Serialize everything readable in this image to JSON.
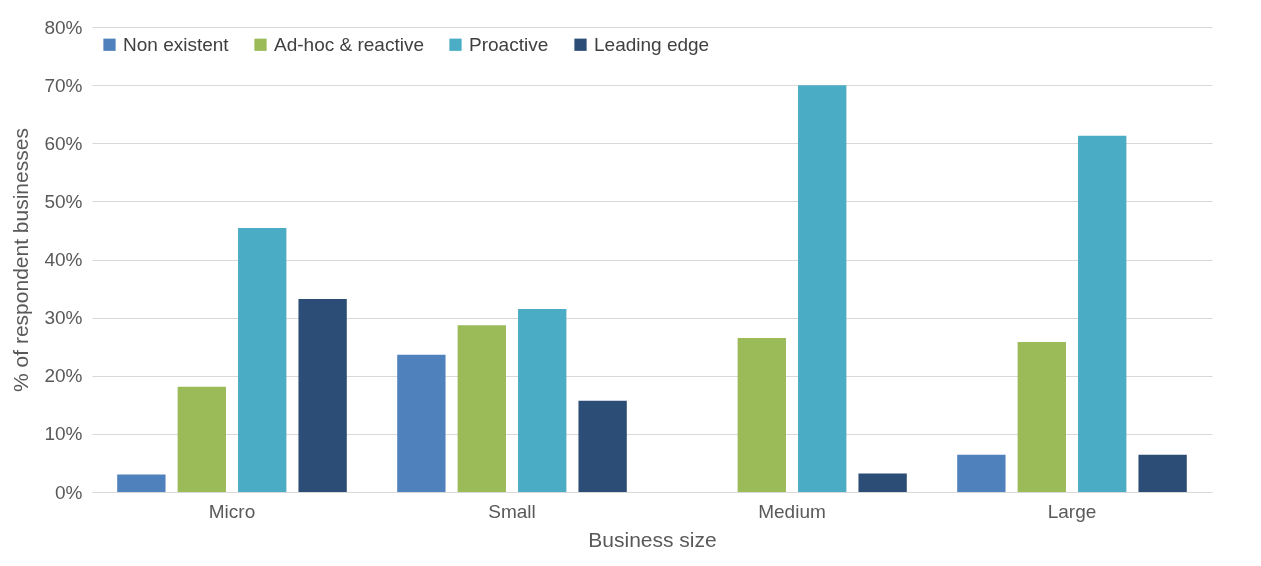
{
  "chart_data": {
    "type": "bar",
    "xlabel": "Business size",
    "ylabel": "% of respondent businesses",
    "categories": [
      "Micro",
      "Small",
      "Medium",
      "Large"
    ],
    "series": [
      {
        "name": "Non existent",
        "color": "#4f81bd",
        "values": [
          3.0,
          23.6,
          0,
          6.4
        ]
      },
      {
        "name": "Ad-hoc & reactive",
        "color": "#9bbb59",
        "values": [
          18.1,
          28.7,
          26.5,
          25.8
        ]
      },
      {
        "name": "Proactive",
        "color": "#4bacc6",
        "values": [
          45.4,
          31.5,
          70.0,
          61.3
        ]
      },
      {
        "name": "Leading edge",
        "color": "#2c4d75",
        "values": [
          33.2,
          15.7,
          3.2,
          6.4
        ]
      }
    ],
    "ylim": [
      0,
      80
    ],
    "yticks": [
      {
        "value": 0,
        "label": "0%"
      },
      {
        "value": 10,
        "label": "10%"
      },
      {
        "value": 20,
        "label": "20%"
      },
      {
        "value": 30,
        "label": "30%"
      },
      {
        "value": 40,
        "label": "40%"
      },
      {
        "value": 50,
        "label": "50%"
      },
      {
        "value": 60,
        "label": "60%"
      },
      {
        "value": 70,
        "label": "70%"
      },
      {
        "value": 80,
        "label": "80%"
      }
    ],
    "grid": "y",
    "legend": "top left"
  }
}
